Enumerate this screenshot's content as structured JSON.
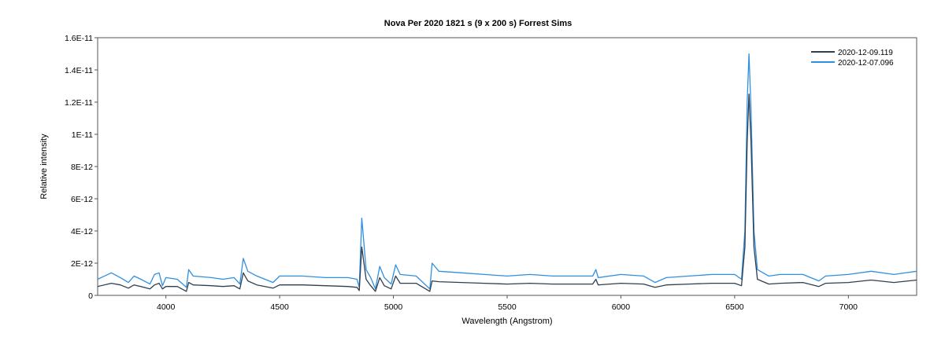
{
  "chart_data": {
    "type": "line",
    "title": "Nova Per 2020   1821 s (9 x 200 s)   Forrest Sims",
    "xlabel": "Wavelength (Angstrom)",
    "ylabel": "Relative intensity",
    "xlim": [
      3700,
      7300
    ],
    "ylim": [
      0,
      1.6e-11
    ],
    "xticks": [
      4000,
      4500,
      5000,
      5500,
      6000,
      6500,
      7000
    ],
    "xtick_labels": [
      "4000",
      "4500",
      "5000",
      "5500",
      "6000",
      "6500",
      "7000"
    ],
    "yticks": [
      0,
      2e-12,
      4e-12,
      6e-12,
      8e-12,
      1e-11,
      1.2e-11,
      1.4e-11,
      1.6e-11
    ],
    "ytick_labels": [
      "0",
      "2E-12",
      "4E-12",
      "6E-12",
      "8E-12",
      "1E-11",
      "1.2E-11",
      "1.4E-11",
      "1.6E-11"
    ],
    "grid": false,
    "legend_position": "top-right",
    "series": [
      {
        "name": "2020-12-09.119",
        "color": "#2f3f4f",
        "points": [
          [
            3700,
            5.5e-13
          ],
          [
            3760,
            7.5e-13
          ],
          [
            3800,
            6.5e-13
          ],
          [
            3835,
            4.5e-13
          ],
          [
            3860,
            6.5e-13
          ],
          [
            3890,
            5.5e-13
          ],
          [
            3930,
            4e-13
          ],
          [
            3950,
            6.5e-13
          ],
          [
            3970,
            7.5e-13
          ],
          [
            3985,
            4e-13
          ],
          [
            4000,
            5.5e-13
          ],
          [
            4050,
            5.5e-13
          ],
          [
            4090,
            2.5e-13
          ],
          [
            4100,
            8e-13
          ],
          [
            4120,
            6.5e-13
          ],
          [
            4200,
            6e-13
          ],
          [
            4250,
            5.5e-13
          ],
          [
            4300,
            6e-13
          ],
          [
            4325,
            4e-13
          ],
          [
            4340,
            1.4e-12
          ],
          [
            4360,
            9e-13
          ],
          [
            4400,
            6.5e-13
          ],
          [
            4471,
            4.5e-13
          ],
          [
            4500,
            6.5e-13
          ],
          [
            4600,
            6.5e-13
          ],
          [
            4700,
            6e-13
          ],
          [
            4800,
            5.5e-13
          ],
          [
            4840,
            5e-13
          ],
          [
            4850,
            3e-13
          ],
          [
            4861,
            3e-12
          ],
          [
            4880,
            1e-12
          ],
          [
            4900,
            6e-13
          ],
          [
            4921,
            2.5e-13
          ],
          [
            4940,
            1.1e-12
          ],
          [
            4960,
            6e-13
          ],
          [
            4990,
            4e-13
          ],
          [
            5010,
            1.2e-12
          ],
          [
            5030,
            7.5e-13
          ],
          [
            5100,
            7.5e-13
          ],
          [
            5160,
            2.5e-13
          ],
          [
            5170,
            9e-13
          ],
          [
            5200,
            8.5e-13
          ],
          [
            5300,
            8e-13
          ],
          [
            5400,
            7.5e-13
          ],
          [
            5500,
            7e-13
          ],
          [
            5600,
            7.5e-13
          ],
          [
            5700,
            7e-13
          ],
          [
            5800,
            7e-13
          ],
          [
            5876,
            7e-13
          ],
          [
            5890,
            1e-12
          ],
          [
            5900,
            6.5e-13
          ],
          [
            6000,
            7.5e-13
          ],
          [
            6100,
            7e-13
          ],
          [
            6150,
            5e-13
          ],
          [
            6200,
            6.5e-13
          ],
          [
            6300,
            7e-13
          ],
          [
            6400,
            7.5e-13
          ],
          [
            6500,
            7.5e-13
          ],
          [
            6530,
            6e-13
          ],
          [
            6545,
            3e-12
          ],
          [
            6555,
            9.5e-12
          ],
          [
            6563,
            1.25e-11
          ],
          [
            6572,
            9.5e-12
          ],
          [
            6585,
            3e-12
          ],
          [
            6600,
            1e-12
          ],
          [
            6650,
            7e-13
          ],
          [
            6700,
            7.5e-13
          ],
          [
            6800,
            8e-13
          ],
          [
            6870,
            5.5e-13
          ],
          [
            6900,
            7.5e-13
          ],
          [
            7000,
            8e-13
          ],
          [
            7100,
            9.5e-13
          ],
          [
            7200,
            8e-13
          ],
          [
            7300,
            9.5e-13
          ]
        ]
      },
      {
        "name": "2020-12-07.096",
        "color": "#2f8fe0",
        "points": [
          [
            3700,
            1e-12
          ],
          [
            3760,
            1.4e-12
          ],
          [
            3800,
            1.1e-12
          ],
          [
            3835,
            8e-13
          ],
          [
            3860,
            1.2e-12
          ],
          [
            3890,
            1e-12
          ],
          [
            3930,
            7e-13
          ],
          [
            3950,
            1.3e-12
          ],
          [
            3970,
            1.4e-12
          ],
          [
            3985,
            6e-13
          ],
          [
            4000,
            1.1e-12
          ],
          [
            4050,
            1e-12
          ],
          [
            4090,
            5e-13
          ],
          [
            4100,
            1.6e-12
          ],
          [
            4120,
            1.2e-12
          ],
          [
            4200,
            1.1e-12
          ],
          [
            4250,
            1e-12
          ],
          [
            4300,
            1.1e-12
          ],
          [
            4325,
            7e-13
          ],
          [
            4340,
            2.3e-12
          ],
          [
            4360,
            1.5e-12
          ],
          [
            4400,
            1.2e-12
          ],
          [
            4471,
            8e-13
          ],
          [
            4500,
            1.2e-12
          ],
          [
            4600,
            1.2e-12
          ],
          [
            4700,
            1.1e-12
          ],
          [
            4800,
            1.1e-12
          ],
          [
            4840,
            1e-12
          ],
          [
            4850,
            5e-13
          ],
          [
            4861,
            4.8e-12
          ],
          [
            4880,
            1.6e-12
          ],
          [
            4900,
            1.1e-12
          ],
          [
            4921,
            4e-13
          ],
          [
            4940,
            1.8e-12
          ],
          [
            4960,
            1.1e-12
          ],
          [
            4990,
            7e-13
          ],
          [
            5010,
            1.9e-12
          ],
          [
            5030,
            1.3e-12
          ],
          [
            5100,
            1.2e-12
          ],
          [
            5160,
            4e-13
          ],
          [
            5170,
            2e-12
          ],
          [
            5200,
            1.5e-12
          ],
          [
            5300,
            1.4e-12
          ],
          [
            5400,
            1.3e-12
          ],
          [
            5500,
            1.2e-12
          ],
          [
            5600,
            1.3e-12
          ],
          [
            5700,
            1.2e-12
          ],
          [
            5800,
            1.2e-12
          ],
          [
            5876,
            1.2e-12
          ],
          [
            5890,
            1.6e-12
          ],
          [
            5900,
            1.1e-12
          ],
          [
            6000,
            1.3e-12
          ],
          [
            6100,
            1.2e-12
          ],
          [
            6150,
            8e-13
          ],
          [
            6200,
            1.1e-12
          ],
          [
            6300,
            1.2e-12
          ],
          [
            6400,
            1.3e-12
          ],
          [
            6500,
            1.3e-12
          ],
          [
            6530,
            1e-12
          ],
          [
            6545,
            4e-12
          ],
          [
            6555,
            1.2e-11
          ],
          [
            6563,
            1.5e-11
          ],
          [
            6572,
            1.15e-11
          ],
          [
            6585,
            4e-12
          ],
          [
            6600,
            1.6e-12
          ],
          [
            6650,
            1.2e-12
          ],
          [
            6700,
            1.3e-12
          ],
          [
            6800,
            1.3e-12
          ],
          [
            6870,
            9e-13
          ],
          [
            6900,
            1.2e-12
          ],
          [
            7000,
            1.3e-12
          ],
          [
            7100,
            1.5e-12
          ],
          [
            7200,
            1.3e-12
          ],
          [
            7300,
            1.5e-12
          ]
        ]
      }
    ]
  }
}
